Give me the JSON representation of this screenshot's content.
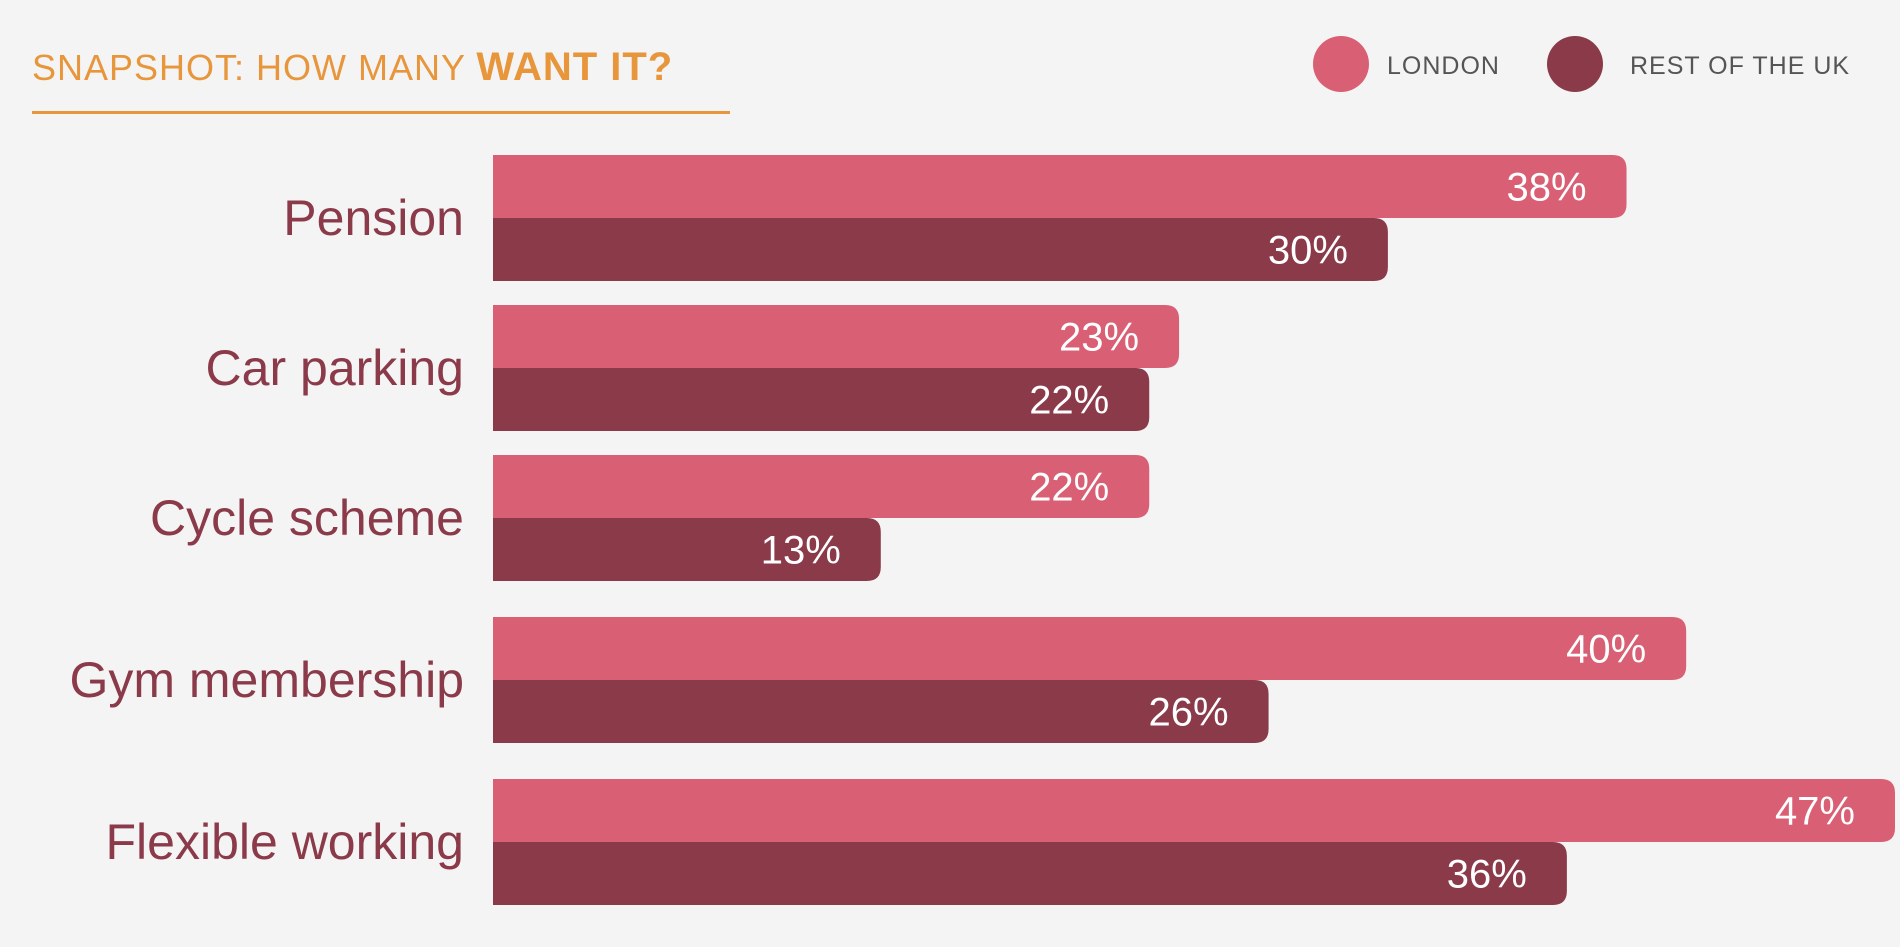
{
  "title": {
    "prefix": "SNAPSHOT: HOW MANY ",
    "emphasis": "WANT IT?",
    "color": "#e8963c"
  },
  "chart_data": {
    "type": "bar",
    "orientation": "horizontal",
    "title": "SNAPSHOT: HOW MANY WANT IT?",
    "categories": [
      "Pension",
      "Car parking",
      "Cycle scheme",
      "Gym membership",
      "Flexible working"
    ],
    "series": [
      {
        "name": "LONDON",
        "values": [
          38,
          23,
          22,
          40,
          47
        ],
        "color": "#d96074"
      },
      {
        "name": "REST OF THE UK",
        "values": [
          30,
          22,
          13,
          26,
          36
        ],
        "color": "#8b3a4a"
      }
    ],
    "value_suffix": "%",
    "xlim": [
      0,
      47
    ],
    "grid": false,
    "legend_position": "top-right",
    "data_labels": true,
    "category_label_color": "#8b3a4a"
  }
}
